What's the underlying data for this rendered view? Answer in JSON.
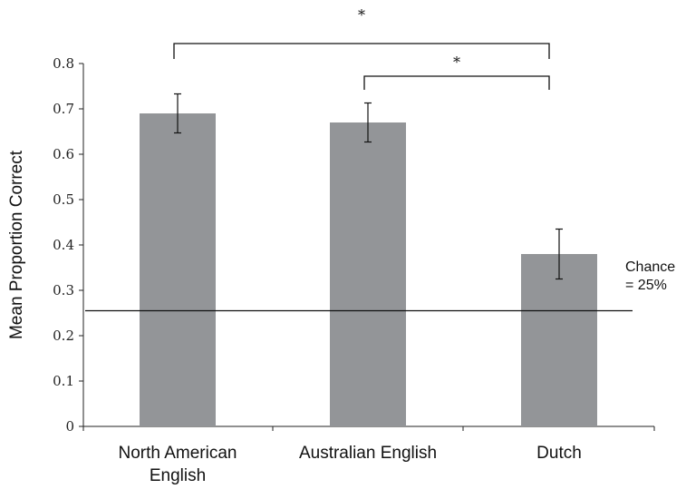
{
  "chart_data": {
    "type": "bar",
    "categories": [
      [
        "North American",
        "English"
      ],
      [
        "Australian English"
      ],
      [
        "Dutch"
      ]
    ],
    "values": [
      0.69,
      0.67,
      0.38
    ],
    "error_upper": [
      0.733,
      0.713,
      0.435
    ],
    "error_lower": [
      0.647,
      0.627,
      0.325
    ],
    "ylabel": "Mean Proportion Correct",
    "xlabel": "",
    "ylim": [
      0,
      0.8
    ],
    "yticks": [
      "0",
      "0.1",
      "0.2",
      "0.3",
      "0.4",
      "0.5",
      "0.6",
      "0.7",
      "0.8"
    ],
    "grid": false,
    "bar_color": "#939598",
    "reference_line": {
      "value": 0.255,
      "label": [
        "Chance",
        "= 25%"
      ]
    },
    "significance": [
      {
        "from": 0,
        "to": 2,
        "label": "*"
      },
      {
        "from": 1,
        "to": 2,
        "label": "*"
      }
    ]
  }
}
